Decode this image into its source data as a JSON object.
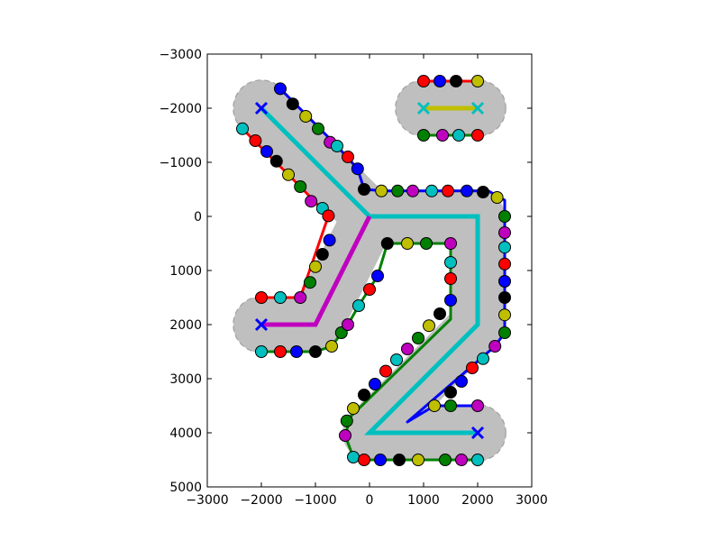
{
  "chart_data": {
    "type": "scatter",
    "xlim": [
      -3000,
      3000
    ],
    "ylim": [
      5000,
      -3000
    ],
    "y_inverted": true,
    "grid": false,
    "x_ticks": [
      -3000,
      -2000,
      -1000,
      0,
      1000,
      2000,
      3000
    ],
    "y_ticks": [
      -3000,
      -2000,
      -1000,
      0,
      1000,
      2000,
      3000,
      4000,
      5000
    ],
    "x_tick_labels": [
      "−3000",
      "−2000",
      "−1000",
      "0",
      "1000",
      "2000",
      "3000"
    ],
    "y_tick_labels": [
      "−3000",
      "−2000",
      "−1000",
      "0",
      "1000",
      "2000",
      "3000",
      "4000",
      "5000"
    ],
    "colors": {
      "fill": "#bfbfbf",
      "outline": "#a0a0a0",
      "cyan": "#00bfbf",
      "magenta": "#bf00bf",
      "yellow": "#bfbf00",
      "blue": "#0000ff",
      "green": "#008000",
      "red": "#ff0000",
      "black": "#000000"
    },
    "marker_cycle": [
      "#00bfbf",
      "#ff0000",
      "#0000ff",
      "#000000",
      "#bfbf00",
      "#008000",
      "#bf00bf"
    ],
    "caps": [
      {
        "center": [
          -2000,
          -2000
        ],
        "radius": 520
      },
      {
        "center": [
          -2000,
          2000
        ],
        "radius": 520
      },
      {
        "center": [
          2000,
          4000
        ],
        "radius": 520
      },
      {
        "center": [
          1000,
          -2000
        ],
        "radius": 520
      },
      {
        "center": [
          2000,
          -2000
        ],
        "radius": 520
      }
    ],
    "center_lines": [
      {
        "color": "#00bfbf",
        "points": [
          [
            -2000,
            -2000
          ],
          [
            0,
            0
          ],
          [
            2000,
            0
          ],
          [
            2000,
            2000
          ],
          [
            0,
            4000
          ],
          [
            2000,
            4000
          ]
        ]
      },
      {
        "color": "#bf00bf",
        "points": [
          [
            0,
            0
          ],
          [
            -1000,
            2000
          ],
          [
            -2000,
            2000
          ]
        ]
      },
      {
        "color": "#bfbf00",
        "points": [
          [
            1000,
            -2000
          ],
          [
            2000,
            -2000
          ]
        ]
      }
    ],
    "boundary_paths": [
      {
        "points": [
          [
            -2350,
            -1620
          ],
          [
            -1280,
            -550
          ],
          [
            -760,
            -10
          ],
          [
            -1280,
            1500
          ],
          [
            -2000,
            1500
          ]
        ]
      },
      {
        "points": [
          [
            -1650,
            -2360
          ],
          [
            -600,
            -1300
          ],
          [
            -220,
            -880
          ],
          [
            -100,
            -500
          ],
          [
            270,
            -470
          ],
          [
            2200,
            -470
          ],
          [
            2500,
            -300
          ],
          [
            2500,
            2150
          ],
          [
            2320,
            2400
          ],
          [
            700,
            3800
          ],
          [
            1200,
            3500
          ],
          [
            2000,
            3500
          ]
        ]
      },
      {
        "points": [
          [
            -2000,
            2500
          ],
          [
            -1000,
            2500
          ],
          [
            -700,
            2400
          ],
          [
            -400,
            2000
          ],
          [
            -200,
            1650
          ],
          [
            150,
            1100
          ],
          [
            330,
            500
          ],
          [
            1500,
            500
          ],
          [
            1500,
            1550
          ],
          [
            1500,
            1900
          ],
          [
            -350,
            3700
          ],
          [
            -450,
            4050
          ],
          [
            -300,
            4450
          ],
          [
            0,
            4500
          ],
          [
            2000,
            4500
          ]
        ]
      },
      {
        "points": [
          [
            1000,
            -2500
          ],
          [
            2000,
            -2500
          ]
        ]
      },
      {
        "points": [
          [
            1000,
            -1500
          ],
          [
            2000,
            -1500
          ]
        ]
      }
    ],
    "x_markers": [
      {
        "point": [
          -2000,
          -2000
        ],
        "color": "#0000ff"
      },
      {
        "point": [
          -2000,
          2000
        ],
        "color": "#0000ff"
      },
      {
        "point": [
          2000,
          4000
        ],
        "color": "#0000ff"
      },
      {
        "point": [
          1000,
          -2000
        ],
        "color": "#00bfbf"
      },
      {
        "point": [
          2000,
          -2000
        ],
        "color": "#00bfbf"
      }
    ],
    "circle_points": [
      [
        -2350,
        -1620
      ],
      [
        -2110,
        -1400
      ],
      [
        -1900,
        -1200
      ],
      [
        -1720,
        -1020
      ],
      [
        -1500,
        -770
      ],
      [
        -1280,
        -550
      ],
      [
        -1080,
        -280
      ],
      [
        -870,
        -150
      ],
      [
        -760,
        -10
      ],
      [
        -740,
        440
      ],
      [
        -870,
        700
      ],
      [
        -1000,
        930
      ],
      [
        -1100,
        1220
      ],
      [
        -1280,
        1500
      ],
      [
        -1650,
        1500
      ],
      [
        -2000,
        1500
      ],
      [
        -1650,
        -2360
      ],
      [
        -1420,
        -2080
      ],
      [
        -1180,
        -1850
      ],
      [
        -950,
        -1620
      ],
      [
        -730,
        -1370
      ],
      [
        -600,
        -1300
      ],
      [
        -400,
        -1100
      ],
      [
        -220,
        -880
      ],
      [
        -100,
        -500
      ],
      [
        220,
        -470
      ],
      [
        520,
        -470
      ],
      [
        800,
        -470
      ],
      [
        1150,
        -470
      ],
      [
        1450,
        -470
      ],
      [
        1800,
        -470
      ],
      [
        2100,
        -450
      ],
      [
        2360,
        -350
      ],
      [
        2500,
        0
      ],
      [
        2500,
        300
      ],
      [
        2500,
        570
      ],
      [
        2500,
        880
      ],
      [
        2500,
        1200
      ],
      [
        2500,
        1500
      ],
      [
        2500,
        1820
      ],
      [
        2500,
        2150
      ],
      [
        2320,
        2400
      ],
      [
        2100,
        2630
      ],
      [
        1900,
        2800
      ],
      [
        1700,
        3050
      ],
      [
        1500,
        3250
      ],
      [
        1200,
        3500
      ],
      [
        1500,
        3500
      ],
      [
        2000,
        3500
      ],
      [
        -2000,
        2500
      ],
      [
        -1650,
        2500
      ],
      [
        -1350,
        2500
      ],
      [
        -1000,
        2500
      ],
      [
        -700,
        2400
      ],
      [
        -520,
        2150
      ],
      [
        -400,
        2000
      ],
      [
        -200,
        1650
      ],
      [
        0,
        1350
      ],
      [
        150,
        1100
      ],
      [
        330,
        500
      ],
      [
        700,
        500
      ],
      [
        1050,
        500
      ],
      [
        1500,
        500
      ],
      [
        1500,
        850
      ],
      [
        1500,
        1150
      ],
      [
        1500,
        1550
      ],
      [
        1300,
        1800
      ],
      [
        1100,
        2020
      ],
      [
        900,
        2250
      ],
      [
        700,
        2450
      ],
      [
        500,
        2650
      ],
      [
        300,
        2860
      ],
      [
        100,
        3100
      ],
      [
        -100,
        3300
      ],
      [
        -300,
        3550
      ],
      [
        -420,
        3780
      ],
      [
        -450,
        4050
      ],
      [
        -300,
        4450
      ],
      [
        -100,
        4500
      ],
      [
        200,
        4500
      ],
      [
        550,
        4500
      ],
      [
        900,
        4500
      ],
      [
        1400,
        4500
      ],
      [
        1700,
        4500
      ],
      [
        2000,
        4500
      ],
      [
        1000,
        -2500
      ],
      [
        1300,
        -2500
      ],
      [
        1600,
        -2500
      ],
      [
        2000,
        -2500
      ],
      [
        1000,
        -1500
      ],
      [
        1350,
        -1500
      ],
      [
        1650,
        -1500
      ],
      [
        2000,
        -1500
      ]
    ]
  }
}
